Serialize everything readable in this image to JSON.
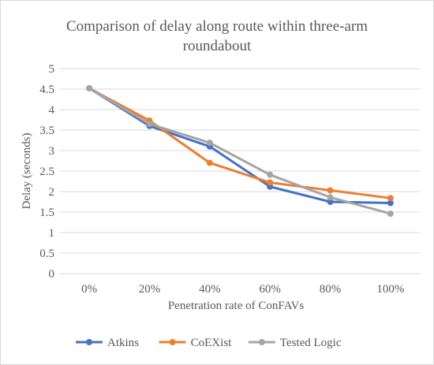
{
  "chart_data": {
    "type": "line",
    "title": "Comparison of delay along route within three-arm roundabout",
    "title_lines": [
      "Comparison of delay along route within three-arm",
      "roundabout"
    ],
    "xlabel": "Penetration rate of ConFAVs",
    "ylabel": "Delay (seconds)",
    "categories": [
      "0%",
      "20%",
      "40%",
      "60%",
      "80%",
      "100%"
    ],
    "ylim": [
      0,
      5
    ],
    "yticks": [
      0,
      0.5,
      1,
      1.5,
      2,
      2.5,
      3,
      3.5,
      4,
      4.5,
      5
    ],
    "ytick_labels": [
      "0",
      "0.5",
      "1",
      "1.5",
      "2",
      "2.5",
      "3",
      "3.5",
      "4",
      "4.5",
      "5"
    ],
    "grid": true,
    "legend_position": "bottom",
    "series": [
      {
        "name": "Atkins",
        "color": "#4472c4",
        "values": [
          4.52,
          3.6,
          3.1,
          2.12,
          1.75,
          1.72
        ]
      },
      {
        "name": "CoEXist",
        "color": "#ed7d31",
        "values": [
          4.52,
          3.73,
          2.7,
          2.22,
          2.03,
          1.84
        ]
      },
      {
        "name": "Tested Logic",
        "color": "#a5a5a5",
        "values": [
          4.52,
          3.65,
          3.19,
          2.41,
          1.86,
          1.46
        ]
      }
    ]
  }
}
